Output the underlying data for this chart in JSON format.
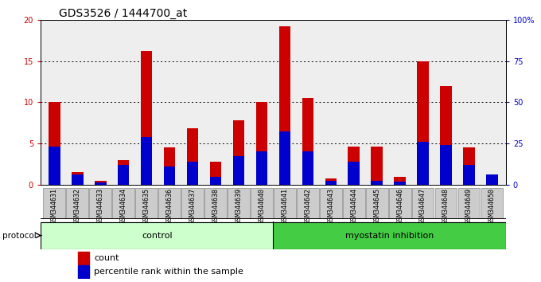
{
  "title": "GDS3526 / 1444700_at",
  "samples": [
    "GSM344631",
    "GSM344632",
    "GSM344633",
    "GSM344634",
    "GSM344635",
    "GSM344636",
    "GSM344637",
    "GSM344638",
    "GSM344639",
    "GSM344640",
    "GSM344641",
    "GSM344642",
    "GSM344643",
    "GSM344644",
    "GSM344645",
    "GSM344646",
    "GSM344647",
    "GSM344648",
    "GSM344649",
    "GSM344650"
  ],
  "count_values": [
    10.0,
    1.5,
    0.5,
    3.0,
    16.2,
    4.5,
    6.8,
    2.8,
    7.8,
    10.0,
    19.2,
    10.5,
    0.8,
    4.6,
    4.6,
    1.0,
    15.0,
    12.0,
    4.5,
    1.2
  ],
  "percentile_values": [
    23.0,
    6.0,
    1.5,
    12.0,
    29.0,
    11.0,
    14.0,
    5.0,
    17.5,
    20.0,
    32.5,
    20.0,
    2.5,
    14.0,
    2.5,
    2.0,
    26.0,
    24.0,
    12.0,
    6.0
  ],
  "control_count": 10,
  "ylim_left": [
    0,
    20
  ],
  "ylim_right": [
    0,
    100
  ],
  "yticks_left": [
    0,
    5,
    10,
    15,
    20
  ],
  "yticks_right": [
    0,
    25,
    50,
    75,
    100
  ],
  "ytick_right_labels": [
    "0",
    "25",
    "50",
    "75",
    "100%"
  ],
  "count_color": "#cc0000",
  "percentile_color": "#0000cc",
  "control_bg": "#ccffcc",
  "myostatin_bg": "#44cc44",
  "plot_bg": "#eeeeee",
  "tick_box_bg": "#cccccc",
  "bar_width": 0.5,
  "title_fontsize": 10,
  "tick_fontsize": 6,
  "proto_fontsize": 8,
  "legend_fontsize": 8,
  "protocol_label": "protocol",
  "control_label": "control",
  "myostatin_label": "myostatin inhibition",
  "legend_count": "count",
  "legend_percentile": "percentile rank within the sample"
}
